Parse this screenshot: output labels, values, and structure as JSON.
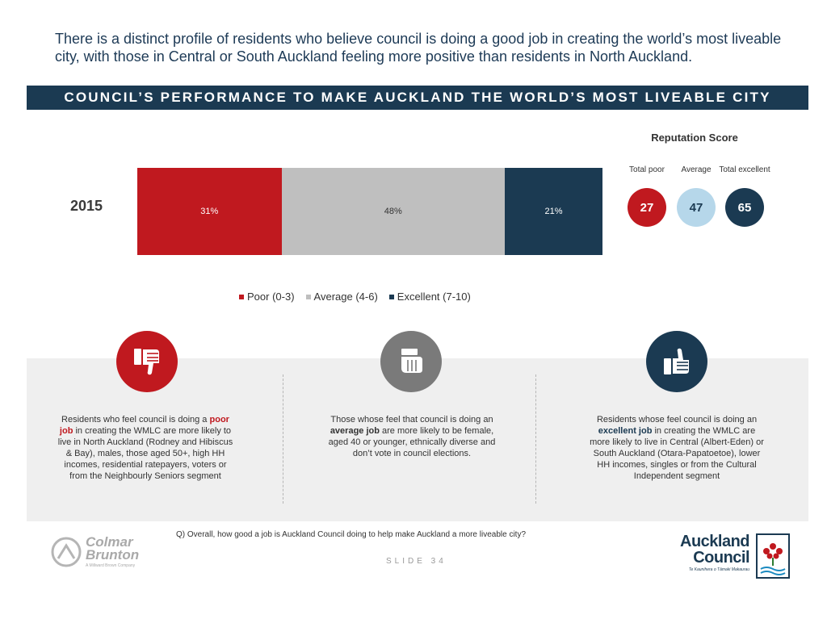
{
  "headline": "There is a distinct profile of residents who believe council is doing a good job in creating the world’s most liveable city, with those in Central or South Auckland feeling more positive than residents in North Auckland.",
  "banner": "COUNCIL’S PERFORMANCE TO MAKE AUCKLAND THE WORLD’S MOST LIVEABLE CITY",
  "colors": {
    "poor": "#c0191f",
    "average": "#bfbfbf",
    "excellent": "#1b3a52",
    "avg_circle": "#b6d7ea"
  },
  "chart_data": {
    "type": "bar",
    "orientation": "horizontal-stacked",
    "categories": [
      "2015"
    ],
    "series": [
      {
        "name": "Poor (0-3)",
        "values": [
          31
        ],
        "label": "31%"
      },
      {
        "name": "Average (4-6)",
        "values": [
          48
        ],
        "label": "48%"
      },
      {
        "name": "Excellent (7-10)",
        "values": [
          21
        ],
        "label": "21%"
      }
    ],
    "xlim": [
      0,
      100
    ],
    "legend": [
      "Poor (0-3)",
      "Average (4-6)",
      "Excellent (7-10)"
    ],
    "legend_position": "bottom"
  },
  "reputation": {
    "title": "Reputation Score",
    "items": [
      {
        "label": "Total poor",
        "value": "27"
      },
      {
        "label": "Average",
        "value": "47"
      },
      {
        "label": "Total excellent",
        "value": "65"
      }
    ]
  },
  "profiles": {
    "poor": {
      "pre": "Residents who feel council is doing a ",
      "em": "poor job",
      "post": " in creating the WMLC are more likely to live in North Auckland (Rodney and Hibiscus & Bay), males, those aged 50+, high HH incomes, residential ratepayers, voters or from the Neighbourly Seniors segment"
    },
    "average": {
      "pre": "Those whose feel that council is doing an ",
      "em": "average job",
      "post": " are more likely to be female, aged 40 or younger, ethnically diverse and don’t vote in council elections."
    },
    "excellent": {
      "pre": "Residents whose feel council is doing an ",
      "em": "excellent job",
      "post": " in creating the WMLC are more likely to live in Central (Albert-Eden) or South Auckland (Otara-Papatoetoe), lower HH incomes, singles or from the Cultural Independent segment"
    }
  },
  "footer": {
    "question": "Q) Overall, how good a job is Auckland Council doing to help make Auckland a more liveable city?",
    "slide": "SLIDE 34",
    "cb_name_1": "Colmar",
    "cb_name_2": "Brunton",
    "cb_tag": "A Millward Brown Company",
    "ac_name_1": "Auckland",
    "ac_name_2": "Council",
    "ac_tag": "Te Kaunihera o Tāmaki Makaurau"
  }
}
